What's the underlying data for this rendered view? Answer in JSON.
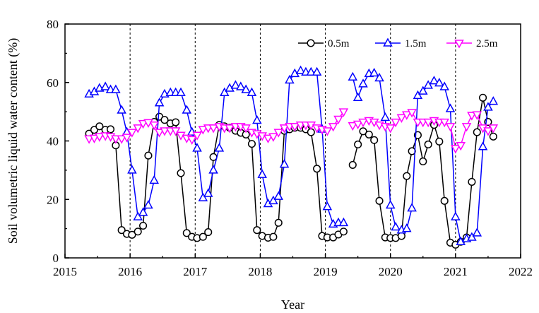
{
  "chart_data": {
    "type": "line",
    "xlabel": "Year",
    "ylabel": "Soil volumetric liquid water content (%)",
    "xlim": [
      2015,
      2022
    ],
    "ylim": [
      0,
      80
    ],
    "xticks": [
      2015,
      2016,
      2017,
      2018,
      2019,
      2020,
      2021,
      2022
    ],
    "yticks": [
      0,
      20,
      40,
      60,
      80
    ],
    "year_dividers": [
      2016,
      2017,
      2018,
      2019,
      2020,
      2021
    ],
    "grid": false,
    "legend_position": "top-right",
    "series": [
      {
        "name": "0.5m",
        "color": "#000000",
        "marker": "circle",
        "segments": [
          [
            [
              2015.37,
              42.5
            ],
            [
              2015.45,
              43.8
            ],
            [
              2015.53,
              45
            ],
            [
              2015.62,
              43.8
            ],
            [
              2015.7,
              44
            ],
            [
              2015.78,
              38.5
            ],
            [
              2015.87,
              9.5
            ],
            [
              2015.95,
              8.2
            ],
            [
              2016.03,
              7.9
            ],
            [
              2016.12,
              9
            ],
            [
              2016.2,
              11
            ],
            [
              2016.28,
              35
            ],
            [
              2016.37,
              46.5
            ],
            [
              2016.45,
              48.3
            ],
            [
              2016.53,
              47.2
            ],
            [
              2016.62,
              46
            ],
            [
              2016.7,
              46.4
            ],
            [
              2016.78,
              29
            ],
            [
              2016.87,
              8.5
            ],
            [
              2016.95,
              7.2
            ],
            [
              2017.03,
              6.8
            ],
            [
              2017.12,
              7.2
            ],
            [
              2017.2,
              8.8
            ],
            [
              2017.28,
              34.5
            ],
            [
              2017.37,
              45.5
            ],
            [
              2017.45,
              45
            ],
            [
              2017.53,
              44.5
            ],
            [
              2017.62,
              43.5
            ],
            [
              2017.7,
              42.8
            ],
            [
              2017.78,
              42.2
            ],
            [
              2017.87,
              39
            ],
            [
              2017.95,
              9.5
            ],
            [
              2018.03,
              7.5
            ],
            [
              2018.12,
              6.9
            ],
            [
              2018.2,
              7.2
            ],
            [
              2018.28,
              12
            ],
            [
              2018.37,
              43.5
            ],
            [
              2018.45,
              44
            ],
            [
              2018.53,
              44.5
            ],
            [
              2018.62,
              44.5
            ],
            [
              2018.7,
              44
            ],
            [
              2018.78,
              43
            ],
            [
              2018.87,
              30.5
            ],
            [
              2018.95,
              7.5
            ],
            [
              2019.03,
              7
            ],
            [
              2019.12,
              7
            ],
            [
              2019.2,
              8
            ],
            [
              2019.28,
              9
            ]
          ],
          [
            [
              2019.42,
              31.8
            ],
            [
              2019.5,
              38.8
            ],
            [
              2019.58,
              43.3
            ],
            [
              2019.67,
              42.2
            ],
            [
              2019.75,
              40.3
            ],
            [
              2019.83,
              19.5
            ],
            [
              2019.92,
              7
            ],
            [
              2020.0,
              6.8
            ],
            [
              2020.08,
              6.8
            ],
            [
              2020.17,
              7.5
            ],
            [
              2020.25,
              28
            ],
            [
              2020.33,
              36.5
            ],
            [
              2020.42,
              42
            ],
            [
              2020.5,
              33
            ],
            [
              2020.58,
              38.8
            ],
            [
              2020.67,
              45.5
            ],
            [
              2020.75,
              39.8
            ],
            [
              2020.83,
              19.5
            ],
            [
              2020.92,
              5.2
            ],
            [
              2021.0,
              4.5
            ],
            [
              2021.08,
              5.5
            ],
            [
              2021.17,
              7
            ],
            [
              2021.25,
              26
            ],
            [
              2021.33,
              43
            ],
            [
              2021.42,
              54.8
            ],
            [
              2021.5,
              46.5
            ],
            [
              2021.58,
              41.5
            ]
          ]
        ]
      },
      {
        "name": "1.5m",
        "color": "#0000ff",
        "marker": "triangle-up",
        "segments": [
          [
            [
              2015.37,
              56
            ],
            [
              2015.45,
              56.8
            ],
            [
              2015.53,
              58
            ],
            [
              2015.62,
              58.5
            ],
            [
              2015.7,
              57.5
            ],
            [
              2015.78,
              57.5
            ],
            [
              2015.87,
              50.5
            ],
            [
              2015.95,
              43
            ],
            [
              2016.03,
              30
            ],
            [
              2016.12,
              14
            ],
            [
              2016.2,
              15.5
            ],
            [
              2016.28,
              18
            ],
            [
              2016.37,
              26.5
            ],
            [
              2016.45,
              53
            ],
            [
              2016.53,
              56
            ],
            [
              2016.62,
              56.5
            ],
            [
              2016.7,
              56.5
            ],
            [
              2016.78,
              56.5
            ],
            [
              2016.87,
              50.5
            ],
            [
              2016.95,
              43
            ],
            [
              2017.03,
              37.5
            ],
            [
              2017.12,
              20.5
            ],
            [
              2017.2,
              22
            ],
            [
              2017.28,
              30
            ],
            [
              2017.37,
              37.5
            ],
            [
              2017.45,
              56.5
            ],
            [
              2017.53,
              58
            ],
            [
              2017.62,
              59
            ],
            [
              2017.7,
              58.5
            ],
            [
              2017.78,
              57.5
            ],
            [
              2017.87,
              56.5
            ],
            [
              2017.95,
              47
            ],
            [
              2018.03,
              28.5
            ],
            [
              2018.12,
              18.5
            ],
            [
              2018.2,
              19.5
            ],
            [
              2018.28,
              21
            ],
            [
              2018.37,
              32
            ],
            [
              2018.45,
              60.8
            ],
            [
              2018.53,
              63
            ],
            [
              2018.62,
              64
            ],
            [
              2018.7,
              63.5
            ],
            [
              2018.78,
              63.5
            ],
            [
              2018.87,
              63.5
            ],
            [
              2018.95,
              44
            ],
            [
              2019.03,
              17.5
            ],
            [
              2019.12,
              11.5
            ],
            [
              2019.2,
              12
            ],
            [
              2019.28,
              12
            ]
          ],
          [
            [
              2019.42,
              61.8
            ],
            [
              2019.5,
              54.8
            ],
            [
              2019.58,
              59.5
            ],
            [
              2019.67,
              63
            ],
            [
              2019.75,
              63.2
            ],
            [
              2019.83,
              61.5
            ],
            [
              2019.92,
              48
            ],
            [
              2020.0,
              18
            ],
            [
              2020.08,
              10.5
            ],
            [
              2020.17,
              9.5
            ],
            [
              2020.25,
              10
            ],
            [
              2020.33,
              17
            ],
            [
              2020.42,
              55.5
            ],
            [
              2020.5,
              57
            ],
            [
              2020.58,
              59
            ],
            [
              2020.67,
              60.5
            ],
            [
              2020.75,
              59.8
            ],
            [
              2020.83,
              58.5
            ],
            [
              2020.92,
              51
            ],
            [
              2021.0,
              14
            ],
            [
              2021.08,
              5.5
            ],
            [
              2021.17,
              6.5
            ],
            [
              2021.25,
              7
            ],
            [
              2021.33,
              8.5
            ],
            [
              2021.42,
              38
            ],
            [
              2021.5,
              51.5
            ],
            [
              2021.58,
              53.5
            ]
          ]
        ]
      },
      {
        "name": "2.5m",
        "color": "#ff00ff",
        "marker": "triangle-down",
        "segments": [
          [
            [
              2015.37,
              40.8
            ],
            [
              2015.45,
              41
            ],
            [
              2015.53,
              41.5
            ],
            [
              2015.62,
              41.8
            ],
            [
              2015.7,
              41.5
            ],
            [
              2015.78,
              40.8
            ],
            [
              2015.87,
              40.8
            ],
            [
              2015.95,
              41.3
            ],
            [
              2016.03,
              43
            ],
            [
              2016.12,
              44.5
            ],
            [
              2016.2,
              46
            ],
            [
              2016.28,
              46.3
            ],
            [
              2016.37,
              45.5
            ],
            [
              2016.45,
              43
            ],
            [
              2016.53,
              43.5
            ],
            [
              2016.62,
              43.5
            ],
            [
              2016.7,
              43.5
            ],
            [
              2016.78,
              42
            ],
            [
              2016.87,
              41
            ],
            [
              2016.95,
              40.5
            ],
            [
              2017.03,
              42
            ],
            [
              2017.12,
              44
            ],
            [
              2017.2,
              44.5
            ],
            [
              2017.28,
              44.5
            ],
            [
              2017.37,
              45
            ],
            [
              2017.45,
              44.5
            ],
            [
              2017.53,
              44.5
            ],
            [
              2017.62,
              45
            ],
            [
              2017.7,
              45
            ],
            [
              2017.78,
              44.5
            ],
            [
              2017.87,
              43
            ],
            [
              2017.95,
              42.5
            ],
            [
              2018.03,
              41.8
            ],
            [
              2018.12,
              41
            ],
            [
              2018.2,
              41.5
            ],
            [
              2018.28,
              43
            ],
            [
              2018.37,
              44.5
            ],
            [
              2018.45,
              45
            ],
            [
              2018.53,
              45
            ],
            [
              2018.62,
              45.5
            ],
            [
              2018.7,
              45.5
            ],
            [
              2018.78,
              45.5
            ],
            [
              2018.87,
              44.5
            ],
            [
              2018.95,
              44
            ],
            [
              2019.03,
              43.5
            ],
            [
              2019.12,
              45
            ],
            [
              2019.2,
              47.5
            ],
            [
              2019.28,
              50
            ]
          ],
          [
            [
              2019.42,
              45.3
            ],
            [
              2019.5,
              45.8
            ],
            [
              2019.58,
              46.5
            ],
            [
              2019.67,
              47
            ],
            [
              2019.75,
              46.5
            ],
            [
              2019.83,
              45.5
            ],
            [
              2019.92,
              45
            ],
            [
              2020.0,
              44.5
            ],
            [
              2020.08,
              46.5
            ],
            [
              2020.17,
              48
            ],
            [
              2020.25,
              49
            ],
            [
              2020.33,
              49.8
            ],
            [
              2020.42,
              46.5
            ],
            [
              2020.5,
              46.5
            ],
            [
              2020.58,
              46.5
            ],
            [
              2020.67,
              47
            ],
            [
              2020.75,
              46.5
            ],
            [
              2020.83,
              46.5
            ],
            [
              2020.92,
              45
            ],
            [
              2021.0,
              37.5
            ],
            [
              2021.08,
              38.5
            ],
            [
              2021.17,
              45
            ],
            [
              2021.25,
              48.8
            ],
            [
              2021.33,
              49
            ],
            [
              2021.42,
              44.5
            ],
            [
              2021.5,
              43.5
            ],
            [
              2021.58,
              44.5
            ]
          ]
        ]
      }
    ]
  }
}
